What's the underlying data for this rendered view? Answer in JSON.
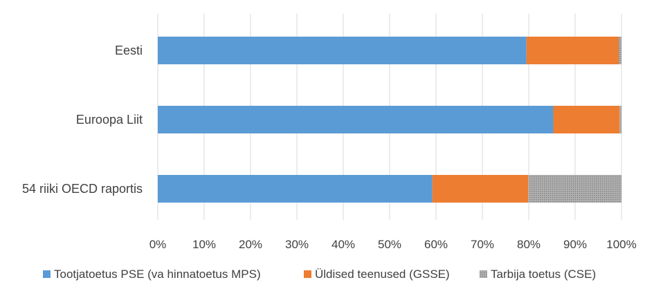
{
  "chart_data": {
    "type": "bar",
    "orientation": "horizontal",
    "stacked": true,
    "categories": [
      "Eesti",
      "Euroopa Liit",
      "54 riiki OECD raportis"
    ],
    "series": [
      {
        "name": "Tootjatoetus PSE (va hinnatoetus MPS)",
        "color": "#5b9bd5",
        "values": [
          79.5,
          85.3,
          59.2
        ]
      },
      {
        "name": "Üldised teenused (GSSE)",
        "color": "#ed7d31",
        "values": [
          19.9,
          14.3,
          20.7
        ]
      },
      {
        "name": "Tarbija toetus (CSE)",
        "color": "#a5a5a5",
        "pattern": "dotted",
        "values": [
          0.6,
          0.4,
          20.1
        ]
      }
    ],
    "xlim": [
      0,
      100
    ],
    "xticks": [
      "0%",
      "10%",
      "20%",
      "30%",
      "40%",
      "50%",
      "60%",
      "70%",
      "80%",
      "90%",
      "100%"
    ],
    "grid": true,
    "legend_position": "bottom"
  }
}
